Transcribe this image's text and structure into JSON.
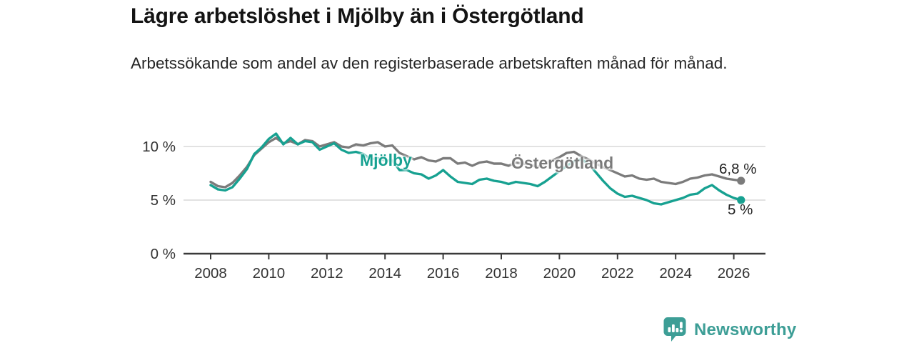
{
  "header": {
    "title": "Lägre arbetslöshet i Mjölby än i Östergötland",
    "subtitle": "Arbetssökande som andel av den registerbaserade arbetskraften månad för månad."
  },
  "footer": {
    "brand": "Newsworthy",
    "brand_color": "#3d9e96",
    "logo_icon": "bar-chart-speech-bubble-icon"
  },
  "chart_data": {
    "type": "line",
    "title": "Lägre arbetslöshet i Mjölby än i Östergötland",
    "subtitle": "Arbetssökande som andel av den registerbaserade arbetskraften månad för månad.",
    "grid": "horizontal-only",
    "legend_position": "inline-labels-on-lines",
    "x_axis": {
      "range": [
        2007.1,
        2027.1
      ],
      "ticks": [
        {
          "value": 2008,
          "label": "2008"
        },
        {
          "value": 2010,
          "label": "2010"
        },
        {
          "value": 2012,
          "label": "2012"
        },
        {
          "value": 2014,
          "label": "2014"
        },
        {
          "value": 2016,
          "label": "2016"
        },
        {
          "value": 2018,
          "label": "2018"
        },
        {
          "value": 2020,
          "label": "2020"
        },
        {
          "value": 2022,
          "label": "2022"
        },
        {
          "value": 2024,
          "label": "2024"
        },
        {
          "value": 2026,
          "label": "2026"
        }
      ]
    },
    "y_axis": {
      "range": [
        0,
        12.3
      ],
      "unit": "%",
      "ticks": [
        {
          "value": 0,
          "label": "0 %"
        },
        {
          "value": 5,
          "label": "5 %"
        },
        {
          "value": 10,
          "label": "10 %"
        }
      ]
    },
    "x_start": 2008.0,
    "x_step": 0.25,
    "colors": {
      "gridline": "#d9d9d9",
      "axis": "#3a3a3a",
      "tick_text": "#333333"
    },
    "series": [
      {
        "name": "Östergötland",
        "color": "#7b7b7b",
        "end_label": "6,8 %",
        "end_value": 6.8,
        "values": [
          6.7,
          6.3,
          6.2,
          6.6,
          7.3,
          8.1,
          9.2,
          9.8,
          10.4,
          10.8,
          10.3,
          10.5,
          10.2,
          10.6,
          10.5,
          10.0,
          10.2,
          10.4,
          10.0,
          9.9,
          10.2,
          10.1,
          10.3,
          10.4,
          10.0,
          10.1,
          9.4,
          9.1,
          8.8,
          9.0,
          8.7,
          8.6,
          8.9,
          8.9,
          8.4,
          8.5,
          8.2,
          8.5,
          8.6,
          8.4,
          8.4,
          8.2,
          8.5,
          8.4,
          8.3,
          8.1,
          8.4,
          8.7,
          9.0,
          9.4,
          9.5,
          9.1,
          8.8,
          8.4,
          8.1,
          7.8,
          7.5,
          7.2,
          7.3,
          7.0,
          6.9,
          7.0,
          6.7,
          6.6,
          6.5,
          6.7,
          7.0,
          7.1,
          7.3,
          7.4,
          7.2,
          7.0,
          6.9,
          6.8
        ]
      },
      {
        "name": "Mjölby",
        "color": "#17a191",
        "end_label": "5 %",
        "end_value": 5.0,
        "values": [
          6.4,
          6.0,
          5.9,
          6.2,
          7.0,
          7.9,
          9.3,
          9.9,
          10.7,
          11.2,
          10.2,
          10.8,
          10.2,
          10.5,
          10.4,
          9.7,
          10.0,
          10.3,
          9.7,
          9.4,
          9.5,
          9.3,
          8.8,
          8.9,
          8.7,
          8.7,
          7.8,
          7.8,
          7.5,
          7.4,
          7.0,
          7.3,
          7.8,
          7.2,
          6.7,
          6.6,
          6.5,
          6.9,
          7.0,
          6.8,
          6.7,
          6.5,
          6.7,
          6.6,
          6.5,
          6.3,
          6.7,
          7.2,
          7.7,
          8.2,
          8.6,
          8.8,
          8.4,
          7.6,
          6.8,
          6.1,
          5.6,
          5.3,
          5.4,
          5.2,
          5.0,
          4.7,
          4.6,
          4.8,
          5.0,
          5.2,
          5.5,
          5.6,
          6.1,
          6.4,
          5.9,
          5.5,
          5.2,
          5.0
        ]
      }
    ]
  }
}
